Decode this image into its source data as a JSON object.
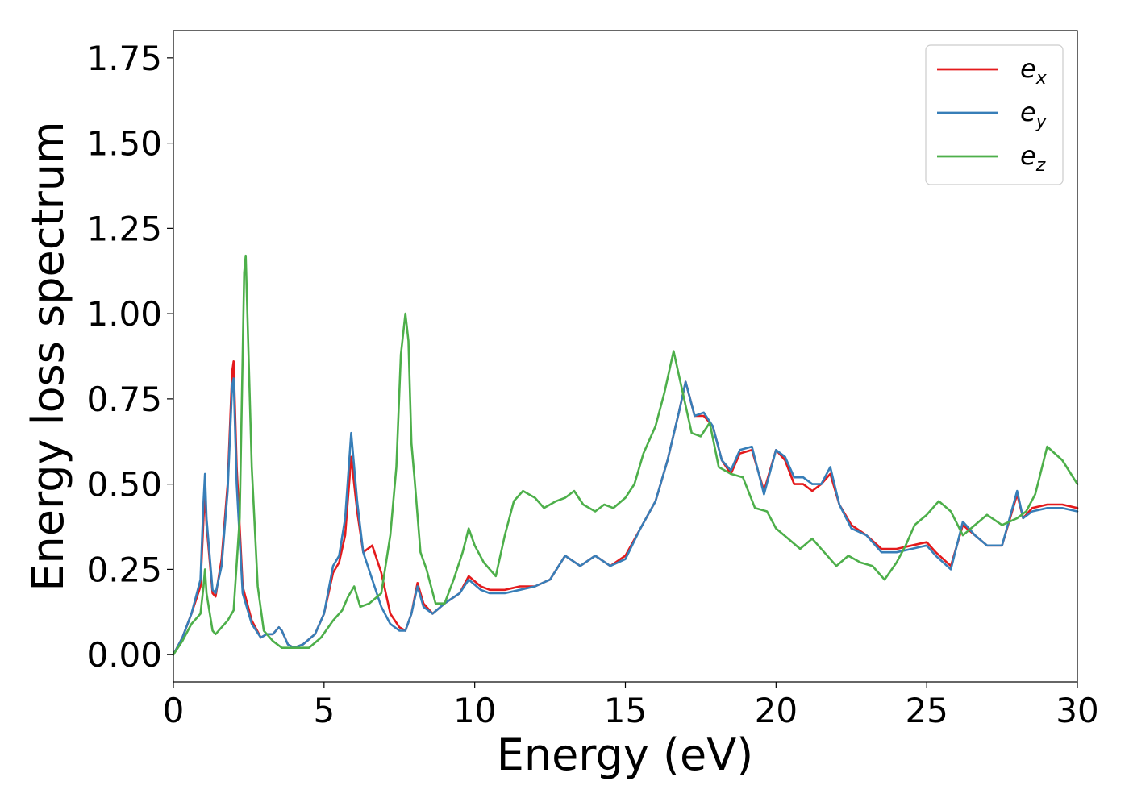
{
  "chart_data": {
    "type": "line",
    "title": "",
    "xlabel": "Energy (eV)",
    "ylabel": "Energy loss spectrum",
    "xlim": [
      0,
      30
    ],
    "ylim": [
      -0.08,
      1.83
    ],
    "xticks": [
      0,
      5,
      10,
      15,
      20,
      25,
      30
    ],
    "yticks": [
      0.0,
      0.25,
      0.5,
      0.75,
      1.0,
      1.25,
      1.5,
      1.75
    ],
    "xtick_labels": [
      "0",
      "5",
      "10",
      "15",
      "20",
      "25",
      "30"
    ],
    "ytick_labels": [
      "0.00",
      "0.25",
      "0.50",
      "0.75",
      "1.00",
      "1.25",
      "1.50",
      "1.75"
    ],
    "grid": false,
    "legend_position": "top-right",
    "series": [
      {
        "name": "e_x",
        "label_base": "e",
        "label_sub": "x",
        "color": "#e41a1c",
        "x": [
          0,
          0.3,
          0.6,
          0.9,
          1.0,
          1.05,
          1.1,
          1.3,
          1.4,
          1.6,
          1.8,
          1.95,
          2.0,
          2.1,
          2.3,
          2.6,
          2.9,
          3.1,
          3.3,
          3.5,
          3.6,
          3.8,
          4.0,
          4.3,
          4.7,
          5.0,
          5.3,
          5.5,
          5.7,
          5.9,
          6.1,
          6.3,
          6.6,
          6.9,
          7.2,
          7.5,
          7.7,
          7.9,
          8.1,
          8.3,
          8.6,
          9.0,
          9.5,
          9.8,
          10.2,
          10.5,
          11.0,
          11.5,
          12.0,
          12.5,
          13.0,
          13.5,
          14.0,
          14.5,
          15.0,
          15.5,
          16.0,
          16.4,
          16.8,
          17.0,
          17.3,
          17.6,
          17.9,
          18.2,
          18.5,
          18.8,
          19.2,
          19.6,
          20.0,
          20.3,
          20.6,
          20.9,
          21.2,
          21.5,
          21.8,
          22.1,
          22.5,
          23.0,
          23.5,
          24.0,
          24.5,
          25.0,
          25.3,
          25.8,
          26.2,
          26.6,
          27.0,
          27.5,
          28.0,
          28.2,
          28.5,
          29.0,
          29.5,
          30.0
        ],
        "y": [
          0.0,
          0.05,
          0.12,
          0.2,
          0.4,
          0.48,
          0.38,
          0.18,
          0.17,
          0.28,
          0.5,
          0.83,
          0.86,
          0.55,
          0.2,
          0.1,
          0.05,
          0.06,
          0.06,
          0.08,
          0.07,
          0.03,
          0.02,
          0.03,
          0.06,
          0.12,
          0.24,
          0.27,
          0.35,
          0.58,
          0.42,
          0.3,
          0.32,
          0.24,
          0.12,
          0.08,
          0.07,
          0.12,
          0.21,
          0.15,
          0.12,
          0.15,
          0.18,
          0.23,
          0.2,
          0.19,
          0.19,
          0.2,
          0.2,
          0.22,
          0.29,
          0.26,
          0.29,
          0.26,
          0.29,
          0.37,
          0.45,
          0.57,
          0.72,
          0.8,
          0.7,
          0.7,
          0.67,
          0.57,
          0.53,
          0.59,
          0.6,
          0.48,
          0.6,
          0.57,
          0.5,
          0.5,
          0.48,
          0.5,
          0.53,
          0.44,
          0.38,
          0.35,
          0.31,
          0.31,
          0.32,
          0.33,
          0.3,
          0.26,
          0.38,
          0.35,
          0.32,
          0.32,
          0.47,
          0.4,
          0.43,
          0.44,
          0.44,
          0.43
        ]
      },
      {
        "name": "e_y",
        "label_base": "e",
        "label_sub": "y",
        "color": "#377eb8",
        "x": [
          0,
          0.3,
          0.6,
          0.9,
          1.0,
          1.05,
          1.1,
          1.3,
          1.4,
          1.6,
          1.8,
          1.95,
          2.0,
          2.1,
          2.3,
          2.6,
          2.9,
          3.1,
          3.3,
          3.5,
          3.6,
          3.8,
          4.0,
          4.3,
          4.7,
          5.0,
          5.3,
          5.5,
          5.7,
          5.9,
          6.1,
          6.3,
          6.6,
          6.9,
          7.2,
          7.5,
          7.7,
          7.9,
          8.1,
          8.3,
          8.6,
          9.0,
          9.5,
          9.8,
          10.2,
          10.5,
          11.0,
          11.5,
          12.0,
          12.5,
          13.0,
          13.5,
          14.0,
          14.5,
          15.0,
          15.5,
          16.0,
          16.4,
          16.8,
          17.0,
          17.3,
          17.6,
          17.9,
          18.2,
          18.5,
          18.8,
          19.2,
          19.6,
          20.0,
          20.3,
          20.6,
          20.9,
          21.2,
          21.5,
          21.8,
          22.1,
          22.5,
          23.0,
          23.5,
          24.0,
          24.5,
          25.0,
          25.3,
          25.8,
          26.2,
          26.6,
          27.0,
          27.5,
          28.0,
          28.2,
          28.5,
          29.0,
          29.5,
          30.0
        ],
        "y": [
          0.0,
          0.05,
          0.12,
          0.22,
          0.45,
          0.53,
          0.4,
          0.19,
          0.18,
          0.26,
          0.48,
          0.79,
          0.81,
          0.5,
          0.18,
          0.09,
          0.05,
          0.06,
          0.06,
          0.08,
          0.07,
          0.03,
          0.02,
          0.03,
          0.06,
          0.12,
          0.26,
          0.29,
          0.4,
          0.65,
          0.45,
          0.3,
          0.22,
          0.14,
          0.09,
          0.07,
          0.07,
          0.12,
          0.2,
          0.14,
          0.12,
          0.15,
          0.18,
          0.22,
          0.19,
          0.18,
          0.18,
          0.19,
          0.2,
          0.22,
          0.29,
          0.26,
          0.29,
          0.26,
          0.28,
          0.37,
          0.45,
          0.57,
          0.72,
          0.8,
          0.7,
          0.71,
          0.67,
          0.57,
          0.54,
          0.6,
          0.61,
          0.47,
          0.6,
          0.58,
          0.52,
          0.52,
          0.5,
          0.5,
          0.55,
          0.44,
          0.37,
          0.35,
          0.3,
          0.3,
          0.31,
          0.32,
          0.29,
          0.25,
          0.39,
          0.35,
          0.32,
          0.32,
          0.48,
          0.4,
          0.42,
          0.43,
          0.43,
          0.42
        ]
      },
      {
        "name": "e_z",
        "label_base": "e",
        "label_sub": "z",
        "color": "#4daf4a",
        "x": [
          0,
          0.3,
          0.6,
          0.9,
          1.0,
          1.05,
          1.1,
          1.3,
          1.4,
          1.6,
          1.8,
          2.0,
          2.2,
          2.35,
          2.4,
          2.6,
          2.8,
          3.0,
          3.3,
          3.6,
          3.9,
          4.2,
          4.5,
          4.9,
          5.3,
          5.6,
          5.8,
          6.0,
          6.2,
          6.5,
          6.9,
          7.2,
          7.4,
          7.55,
          7.7,
          7.8,
          7.9,
          8.0,
          8.2,
          8.4,
          8.7,
          9.0,
          9.3,
          9.6,
          9.8,
          10.0,
          10.3,
          10.7,
          11.0,
          11.3,
          11.6,
          12.0,
          12.3,
          12.7,
          13.0,
          13.3,
          13.6,
          14.0,
          14.3,
          14.6,
          15.0,
          15.3,
          15.6,
          16.0,
          16.3,
          16.6,
          16.9,
          17.2,
          17.5,
          17.8,
          18.1,
          18.5,
          18.9,
          19.3,
          19.7,
          20.0,
          20.4,
          20.8,
          21.2,
          21.6,
          22.0,
          22.4,
          22.8,
          23.2,
          23.6,
          24.0,
          24.3,
          24.6,
          25.0,
          25.4,
          25.8,
          26.2,
          26.6,
          27.0,
          27.5,
          28.0,
          28.3,
          28.6,
          29.0,
          29.5,
          30.0
        ],
        "y": [
          0.0,
          0.04,
          0.09,
          0.12,
          0.2,
          0.25,
          0.18,
          0.07,
          0.06,
          0.08,
          0.1,
          0.13,
          0.4,
          1.12,
          1.17,
          0.55,
          0.2,
          0.07,
          0.04,
          0.02,
          0.02,
          0.02,
          0.02,
          0.05,
          0.1,
          0.13,
          0.17,
          0.2,
          0.14,
          0.15,
          0.18,
          0.35,
          0.55,
          0.88,
          1.0,
          0.92,
          0.62,
          0.52,
          0.3,
          0.25,
          0.15,
          0.15,
          0.22,
          0.3,
          0.37,
          0.32,
          0.27,
          0.23,
          0.35,
          0.45,
          0.48,
          0.46,
          0.43,
          0.45,
          0.46,
          0.48,
          0.44,
          0.42,
          0.44,
          0.43,
          0.46,
          0.5,
          0.59,
          0.67,
          0.77,
          0.89,
          0.77,
          0.65,
          0.64,
          0.68,
          0.55,
          0.53,
          0.52,
          0.43,
          0.42,
          0.37,
          0.34,
          0.31,
          0.34,
          0.3,
          0.26,
          0.29,
          0.27,
          0.26,
          0.22,
          0.27,
          0.32,
          0.38,
          0.41,
          0.45,
          0.42,
          0.35,
          0.38,
          0.41,
          0.38,
          0.4,
          0.42,
          0.47,
          0.61,
          0.57,
          0.5
        ]
      }
    ]
  }
}
